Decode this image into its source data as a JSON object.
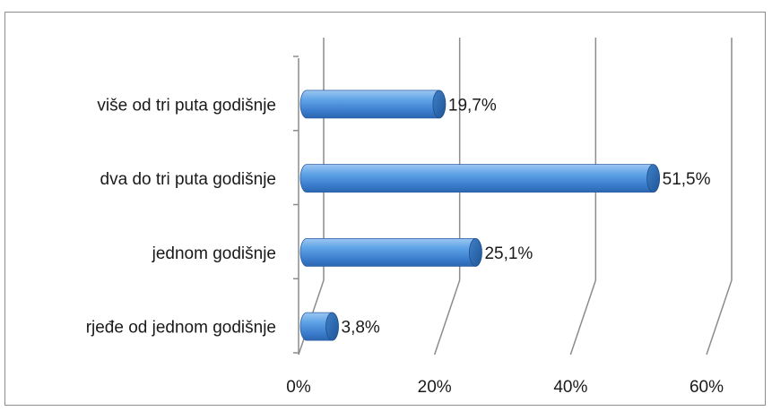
{
  "chart_data": {
    "type": "bar",
    "orientation": "horizontal",
    "style": "3d-cylinder",
    "categories": [
      "više od tri puta godišnje",
      "dva do tri puta godišnje",
      "jednom godišnje",
      "rjeđe od jednom godišnje"
    ],
    "values": [
      19.7,
      51.5,
      25.1,
      3.8
    ],
    "data_labels": [
      "19,7%",
      "51,5%",
      "25,1%",
      "3,8%"
    ],
    "x_ticks": [
      "0%",
      "20%",
      "40%",
      "60%"
    ],
    "xlim": [
      0,
      60
    ],
    "grid": true,
    "legend": "none",
    "bar_color": "#4a90d9",
    "title": "",
    "xlabel": "",
    "ylabel": ""
  }
}
